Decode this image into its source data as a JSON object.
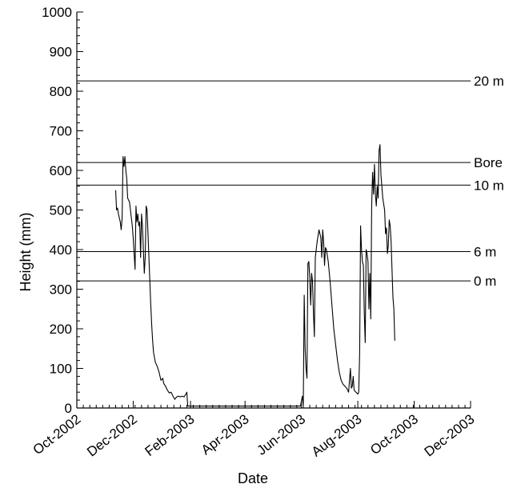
{
  "chart_data": {
    "type": "line",
    "title": "",
    "xlabel": "Date",
    "ylabel": "Height (mm)",
    "ylim": [
      0,
      1000
    ],
    "xlim": [
      "2002-10-01",
      "2003-12-01"
    ],
    "yticks": [
      0,
      100,
      200,
      300,
      400,
      500,
      600,
      700,
      800,
      900,
      1000
    ],
    "xticks": [
      {
        "date": "2002-10-01",
        "label": "Oct-2002"
      },
      {
        "date": "2002-12-01",
        "label": "Dec-2002"
      },
      {
        "date": "2003-02-01",
        "label": "Feb-2003"
      },
      {
        "date": "2003-04-01",
        "label": "Apr-2003"
      },
      {
        "date": "2003-06-01",
        "label": "Jun-2003"
      },
      {
        "date": "2003-08-01",
        "label": "Aug-2003"
      },
      {
        "date": "2003-10-01",
        "label": "Oct-2003"
      },
      {
        "date": "2003-12-01",
        "label": "Dec-2003"
      }
    ],
    "grid": false,
    "reference_lines": [
      {
        "label": "20 m",
        "y": 826
      },
      {
        "label": "Bore",
        "y": 620
      },
      {
        "label": "10 m",
        "y": 563
      },
      {
        "label": "6 m",
        "y": 395
      },
      {
        "label": "0 m",
        "y": 321
      }
    ],
    "series": [
      {
        "name": "",
        "points": [
          [
            "2002-11-12",
            550
          ],
          [
            "2002-11-13",
            500
          ],
          [
            "2002-11-14",
            505
          ],
          [
            "2002-11-15",
            490
          ],
          [
            "2002-11-17",
            470
          ],
          [
            "2002-11-18",
            450
          ],
          [
            "2002-11-19",
            480
          ],
          [
            "2002-11-20",
            635
          ],
          [
            "2002-11-21",
            610
          ],
          [
            "2002-11-22",
            635
          ],
          [
            "2002-11-23",
            600
          ],
          [
            "2002-11-24",
            580
          ],
          [
            "2002-11-25",
            530
          ],
          [
            "2002-11-27",
            520
          ],
          [
            "2002-11-29",
            480
          ],
          [
            "2002-11-30",
            460
          ],
          [
            "2002-12-01",
            430
          ],
          [
            "2002-12-02",
            390
          ],
          [
            "2002-12-03",
            350
          ],
          [
            "2002-12-04",
            510
          ],
          [
            "2002-12-05",
            470
          ],
          [
            "2002-12-06",
            490
          ],
          [
            "2002-12-07",
            460
          ],
          [
            "2002-12-08",
            470
          ],
          [
            "2002-12-09",
            380
          ],
          [
            "2002-12-10",
            490
          ],
          [
            "2002-12-11",
            460
          ],
          [
            "2002-12-12",
            400
          ],
          [
            "2002-12-13",
            340
          ],
          [
            "2002-12-14",
            380
          ],
          [
            "2002-12-15",
            510
          ],
          [
            "2002-12-16",
            500
          ],
          [
            "2002-12-17",
            440
          ],
          [
            "2002-12-18",
            380
          ],
          [
            "2002-12-19",
            320
          ],
          [
            "2002-12-20",
            260
          ],
          [
            "2002-12-21",
            210
          ],
          [
            "2002-12-22",
            170
          ],
          [
            "2002-12-23",
            140
          ],
          [
            "2002-12-25",
            115
          ],
          [
            "2002-12-27",
            105
          ],
          [
            "2002-12-29",
            90
          ],
          [
            "2002-12-31",
            70
          ],
          [
            "2003-01-02",
            75
          ],
          [
            "2003-01-03",
            62
          ],
          [
            "2003-01-05",
            55
          ],
          [
            "2003-01-07",
            45
          ],
          [
            "2003-01-09",
            38
          ],
          [
            "2003-01-11",
            40
          ],
          [
            "2003-01-13",
            30
          ],
          [
            "2003-01-15",
            22
          ],
          [
            "2003-01-17",
            28
          ],
          [
            "2003-01-19",
            30
          ],
          [
            "2003-01-21",
            28
          ],
          [
            "2003-01-23",
            30
          ],
          [
            "2003-01-25",
            28
          ],
          [
            "2003-01-27",
            35
          ],
          [
            "2003-01-28",
            40
          ],
          [
            "2003-01-29",
            5
          ],
          [
            "2003-03-10",
            5
          ],
          [
            "2003-04-20",
            5
          ],
          [
            "2003-05-31",
            5
          ],
          [
            "2003-06-02",
            30
          ],
          [
            "2003-06-03",
            5
          ],
          [
            "2003-06-04",
            285
          ],
          [
            "2003-06-05",
            150
          ],
          [
            "2003-06-06",
            100
          ],
          [
            "2003-06-07",
            75
          ],
          [
            "2003-06-08",
            365
          ],
          [
            "2003-06-09",
            370
          ],
          [
            "2003-06-10",
            330
          ],
          [
            "2003-06-11",
            260
          ],
          [
            "2003-06-12",
            340
          ],
          [
            "2003-06-13",
            320
          ],
          [
            "2003-06-14",
            240
          ],
          [
            "2003-06-15",
            180
          ],
          [
            "2003-06-16",
            380
          ],
          [
            "2003-06-18",
            420
          ],
          [
            "2003-06-20",
            450
          ],
          [
            "2003-06-22",
            430
          ],
          [
            "2003-06-23",
            380
          ],
          [
            "2003-06-24",
            450
          ],
          [
            "2003-06-25",
            420
          ],
          [
            "2003-06-26",
            360
          ],
          [
            "2003-06-27",
            405
          ],
          [
            "2003-06-28",
            400
          ],
          [
            "2003-06-30",
            370
          ],
          [
            "2003-07-02",
            320
          ],
          [
            "2003-07-04",
            260
          ],
          [
            "2003-07-06",
            200
          ],
          [
            "2003-07-08",
            160
          ],
          [
            "2003-07-10",
            120
          ],
          [
            "2003-07-12",
            90
          ],
          [
            "2003-07-14",
            70
          ],
          [
            "2003-07-16",
            60
          ],
          [
            "2003-07-18",
            55
          ],
          [
            "2003-07-20",
            50
          ],
          [
            "2003-07-22",
            40
          ],
          [
            "2003-07-24",
            100
          ],
          [
            "2003-07-25",
            50
          ],
          [
            "2003-07-26",
            55
          ],
          [
            "2003-07-27",
            80
          ],
          [
            "2003-07-28",
            45
          ],
          [
            "2003-07-30",
            40
          ],
          [
            "2003-08-01",
            35
          ],
          [
            "2003-08-02",
            40
          ],
          [
            "2003-08-03",
            140
          ],
          [
            "2003-08-04",
            460
          ],
          [
            "2003-08-05",
            400
          ],
          [
            "2003-08-06",
            370
          ],
          [
            "2003-08-07",
            360
          ],
          [
            "2003-08-08",
            240
          ],
          [
            "2003-08-09",
            165
          ],
          [
            "2003-08-10",
            400
          ],
          [
            "2003-08-11",
            390
          ],
          [
            "2003-08-12",
            370
          ],
          [
            "2003-08-13",
            250
          ],
          [
            "2003-08-14",
            340
          ],
          [
            "2003-08-15",
            225
          ],
          [
            "2003-08-16",
            510
          ],
          [
            "2003-08-17",
            595
          ],
          [
            "2003-08-18",
            540
          ],
          [
            "2003-08-19",
            615
          ],
          [
            "2003-08-20",
            540
          ],
          [
            "2003-08-21",
            510
          ],
          [
            "2003-08-22",
            560
          ],
          [
            "2003-08-23",
            530
          ],
          [
            "2003-08-24",
            650
          ],
          [
            "2003-08-25",
            665
          ],
          [
            "2003-08-26",
            590
          ],
          [
            "2003-08-27",
            560
          ],
          [
            "2003-08-28",
            530
          ],
          [
            "2003-08-30",
            500
          ],
          [
            "2003-08-31",
            440
          ],
          [
            "2003-09-01",
            455
          ],
          [
            "2003-09-02",
            390
          ],
          [
            "2003-09-03",
            410
          ],
          [
            "2003-09-04",
            475
          ],
          [
            "2003-09-05",
            460
          ],
          [
            "2003-09-06",
            420
          ],
          [
            "2003-09-07",
            350
          ],
          [
            "2003-09-08",
            280
          ],
          [
            "2003-09-09",
            250
          ],
          [
            "2003-09-10",
            170
          ]
        ]
      }
    ]
  }
}
